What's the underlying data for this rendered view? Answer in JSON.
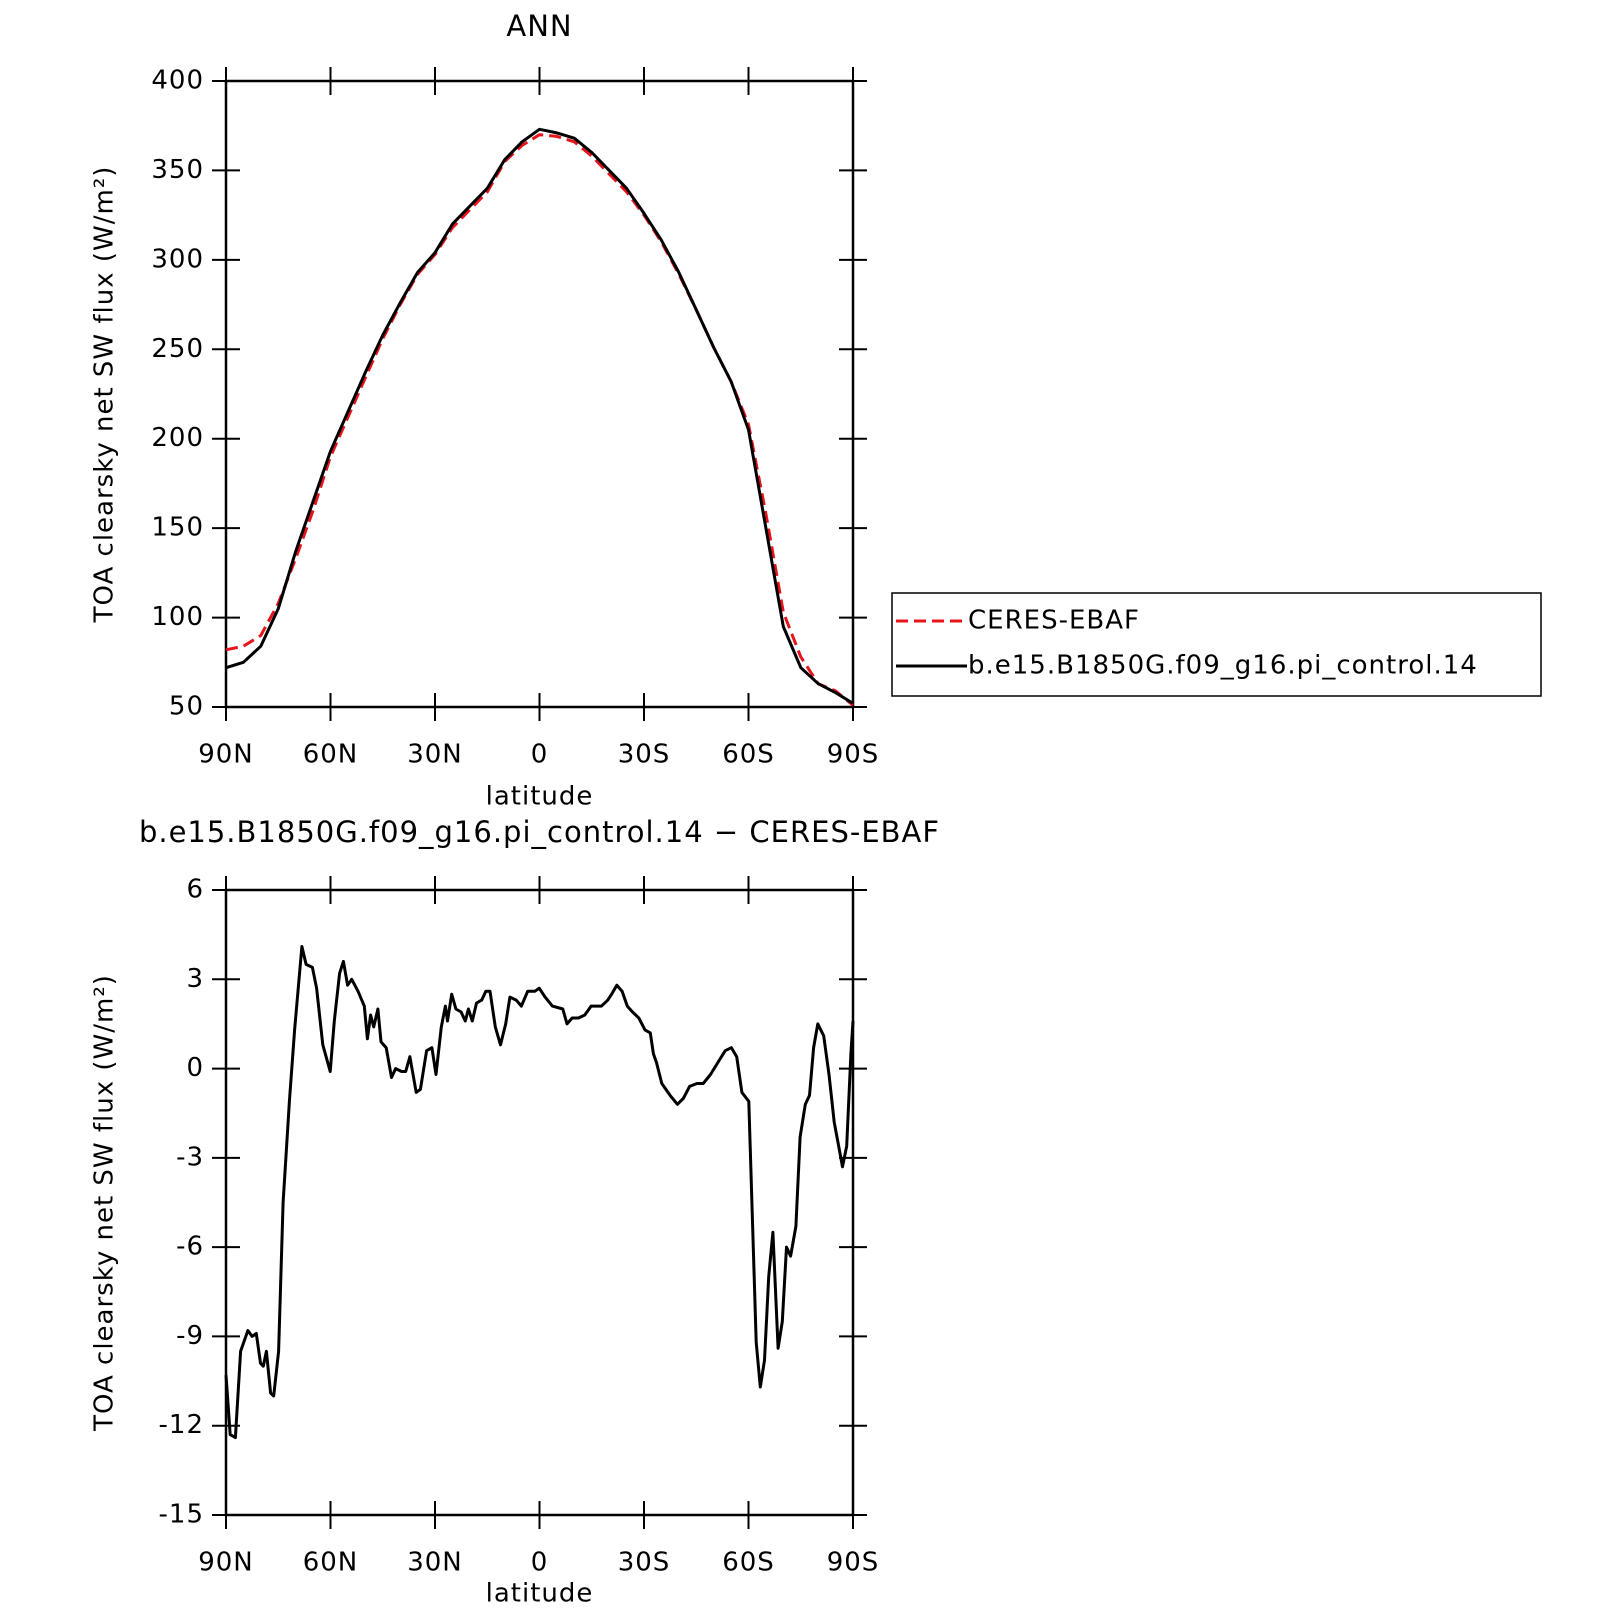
{
  "chart_data": [
    {
      "type": "line",
      "title": "ANN",
      "xlabel": "latitude",
      "ylabel": "TOA clearsky net SW flux (W/m²)",
      "xlim": [
        90,
        -90
      ],
      "xticks": [
        {
          "value": 90,
          "label": "90N"
        },
        {
          "value": 60,
          "label": "60N"
        },
        {
          "value": 30,
          "label": "30N"
        },
        0,
        {
          "value": -30,
          "label": "30S"
        },
        {
          "value": -60,
          "label": "60S"
        },
        {
          "value": -90,
          "label": "90S"
        }
      ],
      "ylim": [
        50,
        400
      ],
      "yticks": [
        50,
        100,
        150,
        200,
        250,
        300,
        350,
        400
      ],
      "x": [
        90,
        85,
        80,
        75,
        70,
        65,
        60,
        55,
        50,
        45,
        40,
        35,
        30,
        25,
        20,
        15,
        10,
        5,
        0,
        -5,
        -10,
        -15,
        -20,
        -25,
        -30,
        -35,
        -40,
        -45,
        -50,
        -55,
        -60,
        -65,
        -70,
        -75,
        -80,
        -85,
        -90
      ],
      "legend_position": "right",
      "series": [
        {
          "name": "CERES-EBAF",
          "color": "#e8141b",
          "line_style": "dashed",
          "values": [
            82,
            84,
            90,
            108,
            133,
            160,
            190,
            212,
            234,
            256,
            275,
            292,
            303,
            318,
            328,
            338,
            355,
            364,
            370,
            369,
            366,
            358,
            348,
            338,
            325,
            310,
            292,
            272,
            251,
            232,
            208,
            158,
            103,
            78,
            63,
            59,
            51
          ]
        },
        {
          "name": "b.e15.B1850G.f09_g16.pi_control.14",
          "color": "#000000",
          "line_style": "solid",
          "values": [
            72,
            75,
            84,
            105,
            137,
            165,
            193,
            215,
            237,
            258,
            276,
            293,
            304,
            320,
            330,
            340,
            356,
            366,
            373,
            371,
            368,
            360,
            350,
            340,
            326,
            311,
            293,
            272,
            251,
            232,
            205,
            150,
            95,
            72,
            63,
            58,
            52
          ]
        }
      ]
    },
    {
      "type": "line",
      "title": "b.e15.B1850G.f09_g16.pi_control.14 − CERES-EBAF",
      "xlabel": "latitude",
      "ylabel": "TOA clearsky net SW flux (W/m²)",
      "xlim": [
        90,
        -90
      ],
      "xticks": [
        {
          "value": 90,
          "label": "90N"
        },
        {
          "value": 60,
          "label": "60N"
        },
        {
          "value": 30,
          "label": "30N"
        },
        0,
        {
          "value": -30,
          "label": "30S"
        },
        {
          "value": -60,
          "label": "60S"
        },
        {
          "value": -90,
          "label": "90S"
        }
      ],
      "ylim": [
        -15,
        6
      ],
      "yticks": [
        -15,
        -12,
        -9,
        -6,
        -3,
        0,
        3,
        6
      ],
      "x": [
        90,
        88.8,
        87.3,
        85.8,
        83.7,
        82.5,
        81.3,
        80.1,
        79.3,
        78.4,
        77.2,
        76.3,
        74.9,
        73.6,
        71.8,
        70.3,
        68.2,
        67.0,
        65.2,
        64.0,
        62.2,
        60.1,
        58.9,
        57.4,
        56.3,
        55.1,
        53.9,
        52.1,
        50.3,
        49.4,
        48.5,
        47.6,
        46.4,
        45.5,
        44.0,
        42.5,
        41.3,
        39.6,
        38.4,
        37.2,
        35.4,
        34.2,
        32.4,
        30.9,
        29.7,
        28.2,
        27.0,
        26.4,
        25.2,
        24.0,
        22.5,
        21.3,
        20.4,
        19.3,
        18.1,
        16.6,
        15.4,
        14.2,
        12.7,
        11.2,
        9.7,
        8.5,
        6.7,
        5.2,
        3.4,
        1.3,
        0.1,
        -1.6,
        -3.7,
        -6.7,
        -7.9,
        -9.4,
        -11.2,
        -13.0,
        -14.8,
        -17.8,
        -19.6,
        -20.7,
        -22.2,
        -23.7,
        -25.2,
        -26.7,
        -28.5,
        -30.3,
        -31.8,
        -32.7,
        -33.6,
        -35.1,
        -37.5,
        -39.6,
        -41.3,
        -43.1,
        -45.2,
        -47.0,
        -49.1,
        -51.2,
        -53.3,
        -55.1,
        -56.6,
        -58.1,
        -60.1,
        -62.2,
        -63.4,
        -64.6,
        -65.8,
        -67.0,
        -68.5,
        -69.7,
        -70.9,
        -72.1,
        -73.6,
        -74.8,
        -76.3,
        -77.5,
        -78.7,
        -79.9,
        -81.6,
        -83.1,
        -84.6,
        -87.0,
        -88.2,
        -89.4,
        -90
      ],
      "color": "#000000",
      "values": [
        -10.3,
        -12.3,
        -12.4,
        -9.5,
        -8.8,
        -9.0,
        -8.9,
        -9.9,
        -10.0,
        -9.5,
        -10.9,
        -11.0,
        -9.5,
        -4.5,
        -1.1,
        1.3,
        4.1,
        3.5,
        3.4,
        2.7,
        0.8,
        -0.1,
        1.6,
        3.2,
        3.6,
        2.8,
        3.0,
        2.6,
        2.1,
        1.0,
        1.8,
        1.4,
        2.0,
        0.9,
        0.7,
        -0.3,
        0.0,
        -0.1,
        -0.1,
        0.4,
        -0.8,
        -0.7,
        0.6,
        0.7,
        -0.2,
        1.4,
        2.1,
        1.6,
        2.5,
        2.0,
        1.9,
        1.6,
        2.0,
        1.6,
        2.2,
        2.3,
        2.6,
        2.6,
        1.4,
        0.8,
        1.5,
        2.4,
        2.3,
        2.1,
        2.6,
        2.6,
        2.7,
        2.4,
        2.1,
        2.0,
        1.5,
        1.7,
        1.7,
        1.8,
        2.1,
        2.1,
        2.3,
        2.5,
        2.8,
        2.6,
        2.1,
        1.9,
        1.7,
        1.3,
        1.2,
        0.5,
        0.2,
        -0.5,
        -0.9,
        -1.2,
        -1.0,
        -0.6,
        -0.5,
        -0.5,
        -0.2,
        0.2,
        0.6,
        0.7,
        0.4,
        -0.8,
        -1.1,
        -9.2,
        -10.7,
        -9.8,
        -7.0,
        -5.5,
        -9.4,
        -8.5,
        -6.0,
        -6.3,
        -5.3,
        -2.3,
        -1.2,
        -0.9,
        0.7,
        1.5,
        1.1,
        -0.2,
        -1.8,
        -3.3,
        -2.6,
        0.5,
        1.6
      ]
    }
  ]
}
